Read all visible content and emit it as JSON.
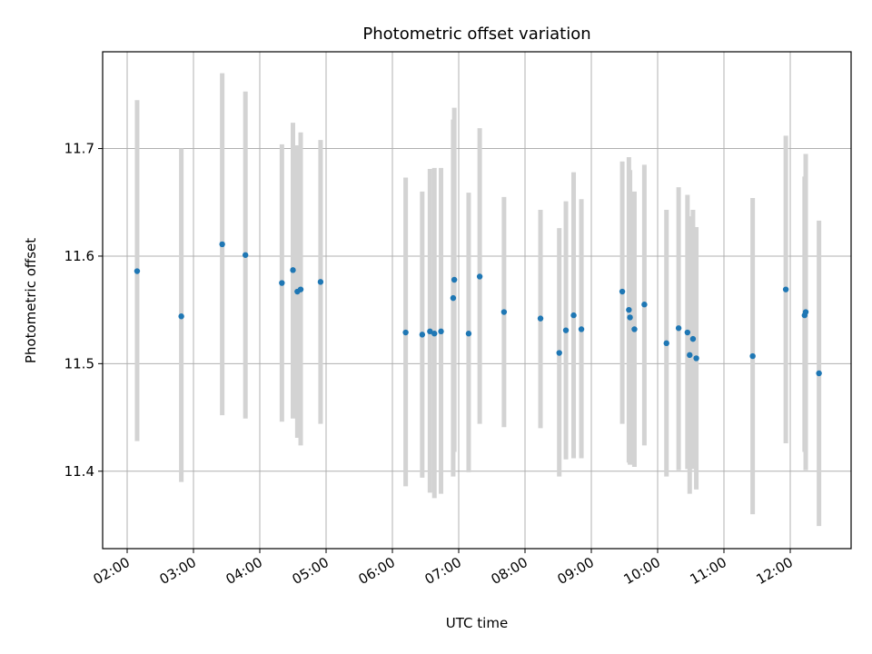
{
  "chart_data": {
    "type": "scatter",
    "title": "Photometric offset variation",
    "xlabel": "UTC time",
    "ylabel": "Photometric offset",
    "x_ticks": [
      "02:00",
      "03:00",
      "04:00",
      "05:00",
      "06:00",
      "07:00",
      "08:00",
      "09:00",
      "10:00",
      "11:00",
      "12:00"
    ],
    "y_ticks": [
      "11.4",
      "11.5",
      "11.6",
      "11.7"
    ],
    "ylim": [
      11.328,
      11.79
    ],
    "grid": true,
    "colors": {
      "point": "#1f77b4",
      "errorbar": "#d3d3d3",
      "grid": "#b0b0b0"
    },
    "points": [
      {
        "x": "02:09",
        "y": 11.586,
        "yerr_low": 11.428,
        "yerr_high": 11.745
      },
      {
        "x": "02:49",
        "y": 11.544,
        "yerr_low": 11.39,
        "yerr_high": 11.7
      },
      {
        "x": "03:26",
        "y": 11.611,
        "yerr_low": 11.452,
        "yerr_high": 11.77
      },
      {
        "x": "03:47",
        "y": 11.601,
        "yerr_low": 11.449,
        "yerr_high": 11.753
      },
      {
        "x": "04:20",
        "y": 11.575,
        "yerr_low": 11.446,
        "yerr_high": 11.704
      },
      {
        "x": "04:30",
        "y": 11.587,
        "yerr_low": 11.449,
        "yerr_high": 11.724
      },
      {
        "x": "04:34",
        "y": 11.567,
        "yerr_low": 11.431,
        "yerr_high": 11.703
      },
      {
        "x": "04:37",
        "y": 11.569,
        "yerr_low": 11.424,
        "yerr_high": 11.715
      },
      {
        "x": "04:55",
        "y": 11.576,
        "yerr_low": 11.444,
        "yerr_high": 11.708
      },
      {
        "x": "06:12",
        "y": 11.529,
        "yerr_low": 11.386,
        "yerr_high": 11.673
      },
      {
        "x": "06:27",
        "y": 11.527,
        "yerr_low": 11.394,
        "yerr_high": 11.66
      },
      {
        "x": "06:34",
        "y": 11.53,
        "yerr_low": 11.38,
        "yerr_high": 11.681
      },
      {
        "x": "06:38",
        "y": 11.528,
        "yerr_low": 11.375,
        "yerr_high": 11.682
      },
      {
        "x": "06:44",
        "y": 11.53,
        "yerr_low": 11.379,
        "yerr_high": 11.682
      },
      {
        "x": "06:55",
        "y": 11.561,
        "yerr_low": 11.395,
        "yerr_high": 11.727
      },
      {
        "x": "06:56",
        "y": 11.578,
        "yerr_low": 11.418,
        "yerr_high": 11.738
      },
      {
        "x": "07:09",
        "y": 11.528,
        "yerr_low": 11.399,
        "yerr_high": 11.659
      },
      {
        "x": "07:19",
        "y": 11.581,
        "yerr_low": 11.444,
        "yerr_high": 11.719
      },
      {
        "x": "07:41",
        "y": 11.548,
        "yerr_low": 11.441,
        "yerr_high": 11.655
      },
      {
        "x": "08:14",
        "y": 11.542,
        "yerr_low": 11.44,
        "yerr_high": 11.643
      },
      {
        "x": "08:31",
        "y": 11.51,
        "yerr_low": 11.395,
        "yerr_high": 11.626
      },
      {
        "x": "08:37",
        "y": 11.531,
        "yerr_low": 11.411,
        "yerr_high": 11.651
      },
      {
        "x": "08:44",
        "y": 11.545,
        "yerr_low": 11.412,
        "yerr_high": 11.678
      },
      {
        "x": "08:51",
        "y": 11.532,
        "yerr_low": 11.412,
        "yerr_high": 11.653
      },
      {
        "x": "09:28",
        "y": 11.567,
        "yerr_low": 11.444,
        "yerr_high": 11.688
      },
      {
        "x": "09:34",
        "y": 11.55,
        "yerr_low": 11.408,
        "yerr_high": 11.692
      },
      {
        "x": "09:35",
        "y": 11.543,
        "yerr_low": 11.406,
        "yerr_high": 11.68
      },
      {
        "x": "09:39",
        "y": 11.532,
        "yerr_low": 11.404,
        "yerr_high": 11.66
      },
      {
        "x": "09:48",
        "y": 11.555,
        "yerr_low": 11.424,
        "yerr_high": 11.685
      },
      {
        "x": "10:08",
        "y": 11.519,
        "yerr_low": 11.395,
        "yerr_high": 11.643
      },
      {
        "x": "10:19",
        "y": 11.533,
        "yerr_low": 11.401,
        "yerr_high": 11.664
      },
      {
        "x": "10:27",
        "y": 11.529,
        "yerr_low": 11.402,
        "yerr_high": 11.657
      },
      {
        "x": "10:29",
        "y": 11.508,
        "yerr_low": 11.379,
        "yerr_high": 11.637
      },
      {
        "x": "10:32",
        "y": 11.523,
        "yerr_low": 11.402,
        "yerr_high": 11.643
      },
      {
        "x": "10:35",
        "y": 11.505,
        "yerr_low": 11.383,
        "yerr_high": 11.627
      },
      {
        "x": "11:26",
        "y": 11.507,
        "yerr_low": 11.36,
        "yerr_high": 11.654
      },
      {
        "x": "11:56",
        "y": 11.569,
        "yerr_low": 11.426,
        "yerr_high": 11.712
      },
      {
        "x": "12:13",
        "y": 11.545,
        "yerr_low": 11.418,
        "yerr_high": 11.674
      },
      {
        "x": "12:14",
        "y": 11.548,
        "yerr_low": 11.401,
        "yerr_high": 11.695
      },
      {
        "x": "12:26",
        "y": 11.491,
        "yerr_low": 11.349,
        "yerr_high": 11.633
      }
    ]
  }
}
